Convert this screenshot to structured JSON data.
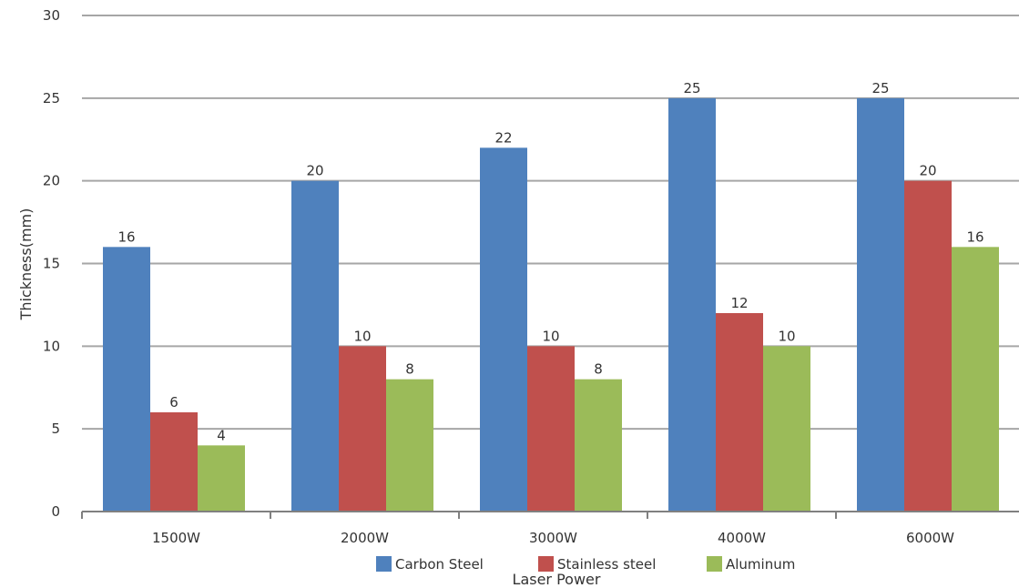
{
  "chart_data": {
    "type": "bar",
    "categories": [
      "1500W",
      "2000W",
      "3000W",
      "4000W",
      "6000W"
    ],
    "series": [
      {
        "name": "Carbon Steel",
        "values": [
          16,
          20,
          22,
          25,
          25
        ],
        "color": "#4f81bd"
      },
      {
        "name": "Stainless steel",
        "values": [
          6,
          10,
          10,
          12,
          20
        ],
        "color": "#c0504d"
      },
      {
        "name": "Aluminum",
        "values": [
          4,
          8,
          8,
          10,
          16
        ],
        "color": "#9bbb59"
      }
    ],
    "title": "",
    "xlabel": "Laser Power",
    "ylabel": "Thickness(mm)",
    "ylim": [
      0,
      30
    ],
    "yticks": [
      0,
      5,
      10,
      15,
      20,
      25,
      30
    ],
    "grid": true,
    "legend_position": "bottom",
    "show_data_labels": true,
    "gridline_color": "#a6a6a6",
    "axis_color": "#808080"
  }
}
